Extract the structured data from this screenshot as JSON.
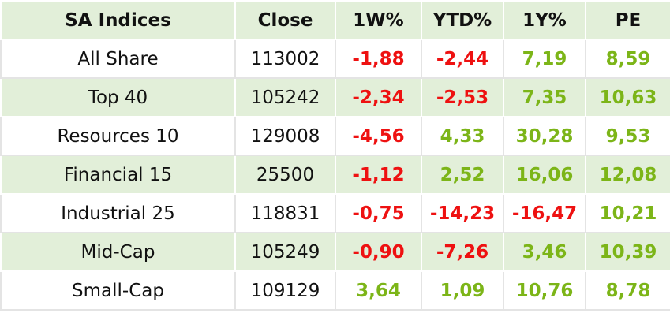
{
  "table": {
    "headers": [
      "SA Indices",
      "Close",
      "1W%",
      "YTD%",
      "1Y%",
      "PE"
    ],
    "rows": [
      [
        "All Share",
        "113002",
        "-1,88",
        "-2,44",
        "7,19",
        "8,59"
      ],
      [
        "Top 40",
        "105242",
        "-2,34",
        "-2,53",
        "7,35",
        "10,63"
      ],
      [
        "Resources 10",
        "129008",
        "-4,56",
        "4,33",
        "30,28",
        "9,53"
      ],
      [
        "Financial 15",
        "25500",
        "-1,12",
        "2,52",
        "16,06",
        "12,08"
      ],
      [
        "Industrial 25",
        "118831",
        "-0,75",
        "-14,23",
        "-16,47",
        "10,21"
      ],
      [
        "Mid-Cap",
        "105249",
        "-0,90",
        "-7,26",
        "3,46",
        "10,39"
      ],
      [
        "Small-Cap",
        "109129",
        "3,64",
        "1,09",
        "10,76",
        "8,78"
      ]
    ]
  }
}
